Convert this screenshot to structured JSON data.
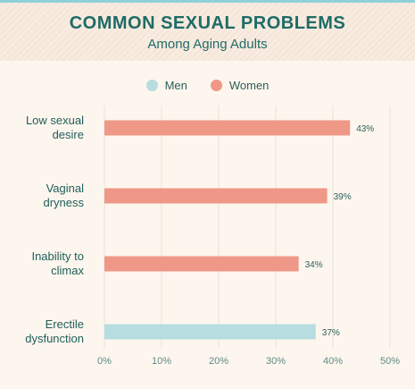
{
  "header": {
    "title": "COMMON SEXUAL PROBLEMS",
    "subtitle": "Among Aging Adults"
  },
  "legend": [
    {
      "name": "Men",
      "color": "#b6dde0"
    },
    {
      "name": "Women",
      "color": "#ef9888"
    }
  ],
  "chart_data": {
    "type": "bar",
    "orientation": "horizontal",
    "title": "COMMON SEXUAL PROBLEMS",
    "subtitle": "Among Aging Adults",
    "categories": [
      {
        "lines": [
          "Low sexual",
          "desire"
        ]
      },
      {
        "lines": [
          "Vaginal",
          "dryness"
        ]
      },
      {
        "lines": [
          "Inability to",
          "climax"
        ]
      },
      {
        "lines": [
          "Erectile",
          "dysfunction"
        ]
      }
    ],
    "series_names": [
      "Men",
      "Women"
    ],
    "bars": [
      {
        "value": 43,
        "series": "Women",
        "label": "43%"
      },
      {
        "value": 39,
        "series": "Women",
        "label": "39%"
      },
      {
        "value": 34,
        "series": "Women",
        "label": "34%"
      },
      {
        "value": 37,
        "series": "Men",
        "label": "37%"
      }
    ],
    "xlim": [
      0,
      50
    ],
    "xticks": [
      "0%",
      "10%",
      "20%",
      "30%",
      "40%",
      "50%"
    ],
    "grid": true,
    "legend_position": "top-center",
    "colors": {
      "Men": "#b6dde0",
      "Women": "#ef9888"
    }
  }
}
